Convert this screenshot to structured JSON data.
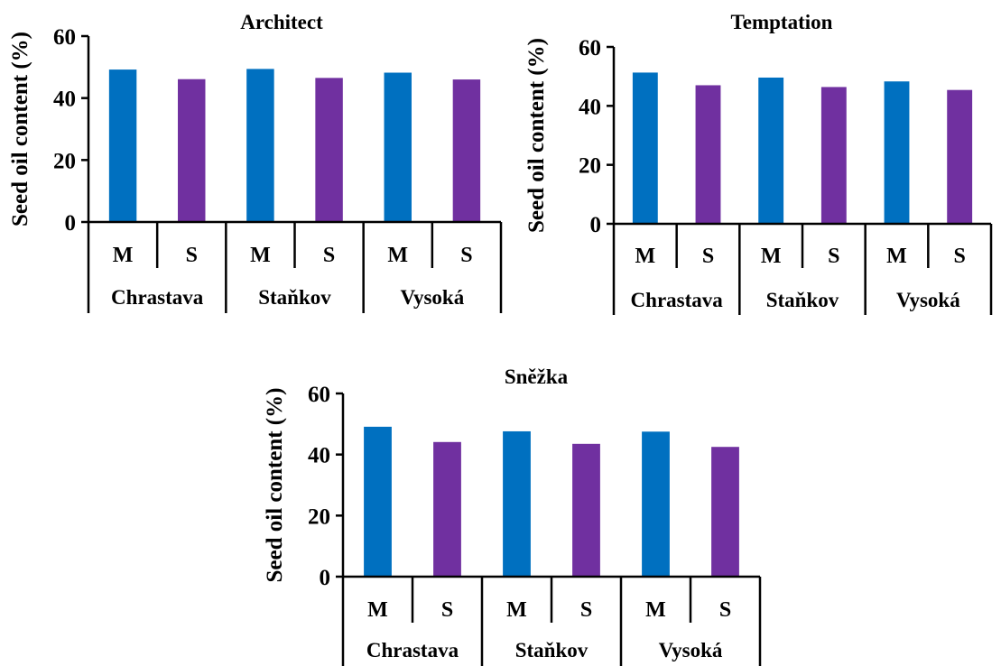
{
  "colors": {
    "M": "#0070C0",
    "S": "#7030A0",
    "axis": "#000000"
  },
  "chart_data": [
    {
      "type": "bar",
      "title": "Architect",
      "ylabel": "Seed oil content (%)",
      "ylim": [
        0,
        60
      ],
      "yticks": [
        "0",
        "20",
        "40",
        "60"
      ],
      "groups": [
        "Chrastava",
        "Staňkov",
        "Vysoká"
      ],
      "categories": [
        "M",
        "S",
        "M",
        "S",
        "M",
        "S"
      ],
      "values": [
        49.2,
        46.1,
        49.4,
        46.5,
        48.2,
        46.0
      ],
      "grid": false,
      "legend": "none"
    },
    {
      "type": "bar",
      "title": "Temptation",
      "ylabel": "Seed oil content (%)",
      "ylim": [
        0,
        60
      ],
      "yticks": [
        "0",
        "20",
        "40",
        "60"
      ],
      "groups": [
        "Chrastava",
        "Staňkov",
        "Vysoká"
      ],
      "categories": [
        "M",
        "S",
        "M",
        "S",
        "M",
        "S"
      ],
      "values": [
        51.3,
        47.0,
        49.6,
        46.4,
        48.3,
        45.4
      ],
      "grid": false,
      "legend": "none"
    },
    {
      "type": "bar",
      "title": "Sněžka",
      "ylabel": "Seed oil content (%)",
      "ylim": [
        0,
        60
      ],
      "yticks": [
        "0",
        "20",
        "40",
        "60"
      ],
      "groups": [
        "Chrastava",
        "Staňkov",
        "Vysoká"
      ],
      "categories": [
        "M",
        "S",
        "M",
        "S",
        "M",
        "S"
      ],
      "values": [
        49.1,
        44.1,
        47.6,
        43.5,
        47.5,
        42.5
      ],
      "grid": false,
      "legend": "none"
    }
  ]
}
